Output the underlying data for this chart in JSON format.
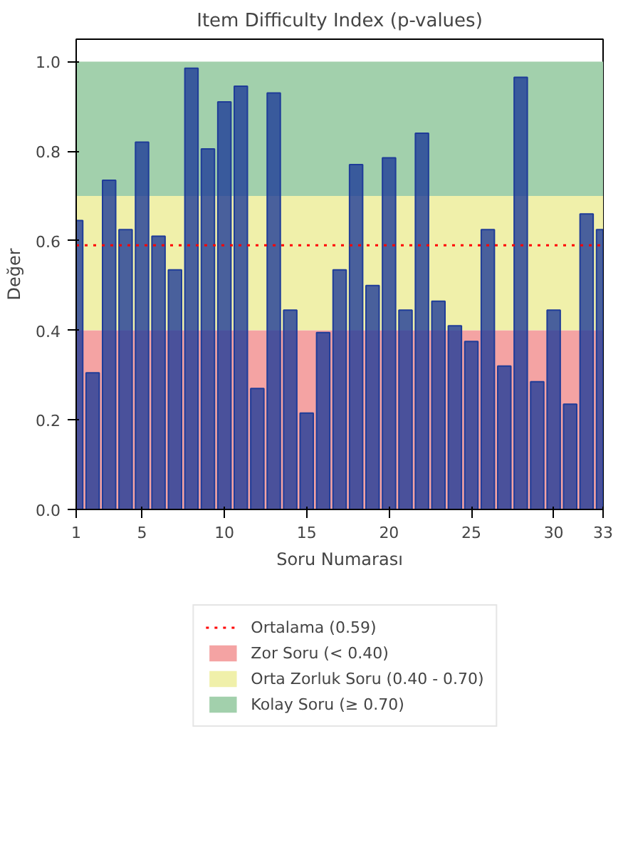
{
  "chart_data": {
    "type": "bar",
    "title": "Item Difficulty Index (p-values)",
    "xlabel": "Soru Numarası",
    "ylabel": "Değer",
    "x": [
      1,
      2,
      3,
      4,
      5,
      6,
      7,
      8,
      9,
      10,
      11,
      12,
      13,
      14,
      15,
      16,
      17,
      18,
      19,
      20,
      21,
      22,
      23,
      24,
      25,
      26,
      27,
      28,
      29,
      30,
      31,
      32,
      33
    ],
    "values": [
      0.645,
      0.305,
      0.735,
      0.625,
      0.82,
      0.61,
      0.535,
      0.985,
      0.805,
      0.91,
      0.945,
      0.27,
      0.93,
      0.445,
      0.215,
      0.395,
      0.535,
      0.77,
      0.5,
      0.785,
      0.445,
      0.84,
      0.465,
      0.41,
      0.375,
      0.625,
      0.32,
      0.965,
      0.285,
      0.445,
      0.235,
      0.66,
      0.625
    ],
    "color": "#1f3c98",
    "xlim": [
      1,
      33
    ],
    "xticks": [
      1,
      5,
      10,
      15,
      20,
      25,
      30,
      33
    ],
    "ylim": [
      0,
      1.05
    ],
    "yticks": [
      {
        "value": 0,
        "label": "0.0"
      },
      {
        "value": 0.2,
        "label": "0.2"
      },
      {
        "value": 0.4,
        "label": "0.4"
      },
      {
        "value": 0.6,
        "label": "0.6"
      },
      {
        "value": 0.8,
        "label": "0.8"
      },
      {
        "value": 1.0,
        "label": "1.0"
      }
    ],
    "ref_lines": [
      {
        "axis": "y",
        "value": 0.59,
        "label": "Ortalama (0.59)",
        "color": "#ff0000",
        "line_style": "dotted"
      }
    ],
    "bands": [
      {
        "axis": "y",
        "from": 0,
        "to": 0.4,
        "label": "Zor Soru (< 0.40)",
        "color": "#f4a3a3"
      },
      {
        "axis": "y",
        "from": 0.4,
        "to": 0.7,
        "label": "Orta Zorluk Soru (0.40 - 0.70)",
        "color": "#f0f0aa"
      },
      {
        "axis": "y",
        "from": 0.7,
        "to": 1.0,
        "label": "Kolay Soru (≥ 0.70)",
        "color": "#a2d0ac"
      }
    ],
    "grid": false,
    "legend": "bottom"
  }
}
